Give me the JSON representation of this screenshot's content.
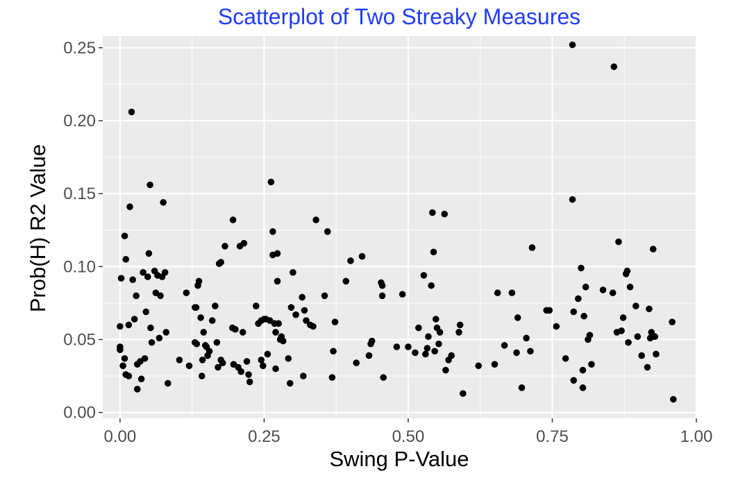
{
  "chart_data": {
    "type": "scatter",
    "title": "Scatterplot of Two Streaky Measures",
    "title_color": "#1f3cff",
    "xlabel": "Swing P-Value",
    "ylabel": "Prob(H) R2 Value",
    "xlim": [
      -0.03,
      1.0
    ],
    "ylim": [
      -0.004,
      0.258
    ],
    "x_ticks": [
      0.0,
      0.25,
      0.5,
      0.75,
      1.0
    ],
    "x_tick_labels": [
      "0.00",
      "0.25",
      "0.50",
      "0.75",
      "1.00"
    ],
    "y_ticks": [
      0.0,
      0.05,
      0.1,
      0.15,
      0.2,
      0.25
    ],
    "y_tick_labels": [
      "0.00",
      "0.05",
      "0.10",
      "0.15",
      "0.20",
      "0.25"
    ],
    "grid": true,
    "panel_color": "#ebebeb",
    "grid_color": "#ffffff",
    "point_color": "#000000",
    "points": [
      [
        0.0,
        0.059
      ],
      [
        0.0,
        0.045
      ],
      [
        0.0,
        0.043
      ],
      [
        0.002,
        0.092
      ],
      [
        0.005,
        0.032
      ],
      [
        0.008,
        0.121
      ],
      [
        0.008,
        0.037
      ],
      [
        0.01,
        0.105
      ],
      [
        0.01,
        0.026
      ],
      [
        0.015,
        0.06
      ],
      [
        0.015,
        0.025
      ],
      [
        0.017,
        0.141
      ],
      [
        0.02,
        0.206
      ],
      [
        0.022,
        0.091
      ],
      [
        0.025,
        0.064
      ],
      [
        0.028,
        0.08
      ],
      [
        0.03,
        0.033
      ],
      [
        0.03,
        0.016
      ],
      [
        0.035,
        0.035
      ],
      [
        0.037,
        0.023
      ],
      [
        0.04,
        0.096
      ],
      [
        0.043,
        0.037
      ],
      [
        0.045,
        0.069
      ],
      [
        0.048,
        0.093
      ],
      [
        0.05,
        0.109
      ],
      [
        0.052,
        0.156
      ],
      [
        0.053,
        0.058
      ],
      [
        0.055,
        0.048
      ],
      [
        0.06,
        0.097
      ],
      [
        0.062,
        0.082
      ],
      [
        0.065,
        0.094
      ],
      [
        0.068,
        0.051
      ],
      [
        0.07,
        0.08
      ],
      [
        0.073,
        0.093
      ],
      [
        0.075,
        0.144
      ],
      [
        0.078,
        0.096
      ],
      [
        0.08,
        0.055
      ],
      [
        0.083,
        0.02
      ],
      [
        0.103,
        0.036
      ],
      [
        0.115,
        0.082
      ],
      [
        0.12,
        0.032
      ],
      [
        0.13,
        0.072
      ],
      [
        0.13,
        0.048
      ],
      [
        0.132,
        0.072
      ],
      [
        0.133,
        0.047
      ],
      [
        0.135,
        0.087
      ],
      [
        0.137,
        0.09
      ],
      [
        0.14,
        0.065
      ],
      [
        0.142,
        0.025
      ],
      [
        0.143,
        0.036
      ],
      [
        0.145,
        0.055
      ],
      [
        0.148,
        0.046
      ],
      [
        0.15,
        0.045
      ],
      [
        0.152,
        0.039
      ],
      [
        0.155,
        0.042
      ],
      [
        0.16,
        0.063
      ],
      [
        0.165,
        0.073
      ],
      [
        0.168,
        0.048
      ],
      [
        0.17,
        0.031
      ],
      [
        0.172,
        0.102
      ],
      [
        0.175,
        0.103
      ],
      [
        0.175,
        0.036
      ],
      [
        0.178,
        0.034
      ],
      [
        0.182,
        0.114
      ],
      [
        0.195,
        0.058
      ],
      [
        0.196,
        0.132
      ],
      [
        0.197,
        0.033
      ],
      [
        0.2,
        0.057
      ],
      [
        0.205,
        0.031
      ],
      [
        0.208,
        0.114
      ],
      [
        0.21,
        0.028
      ],
      [
        0.213,
        0.055
      ],
      [
        0.215,
        0.116
      ],
      [
        0.22,
        0.035
      ],
      [
        0.223,
        0.026
      ],
      [
        0.225,
        0.021
      ],
      [
        0.236,
        0.073
      ],
      [
        0.24,
        0.061
      ],
      [
        0.245,
        0.036
      ],
      [
        0.245,
        0.063
      ],
      [
        0.248,
        0.032
      ],
      [
        0.25,
        0.064
      ],
      [
        0.253,
        0.064
      ],
      [
        0.256,
        0.04
      ],
      [
        0.26,
        0.063
      ],
      [
        0.262,
        0.158
      ],
      [
        0.265,
        0.124
      ],
      [
        0.265,
        0.108
      ],
      [
        0.268,
        0.061
      ],
      [
        0.27,
        0.055
      ],
      [
        0.27,
        0.03
      ],
      [
        0.273,
        0.109
      ],
      [
        0.273,
        0.09
      ],
      [
        0.275,
        0.061
      ],
      [
        0.278,
        0.05
      ],
      [
        0.28,
        0.052
      ],
      [
        0.283,
        0.049
      ],
      [
        0.292,
        0.037
      ],
      [
        0.295,
        0.02
      ],
      [
        0.297,
        0.072
      ],
      [
        0.3,
        0.096
      ],
      [
        0.305,
        0.067
      ],
      [
        0.316,
        0.079
      ],
      [
        0.318,
        0.025
      ],
      [
        0.32,
        0.07
      ],
      [
        0.323,
        0.063
      ],
      [
        0.33,
        0.06
      ],
      [
        0.335,
        0.059
      ],
      [
        0.34,
        0.132
      ],
      [
        0.355,
        0.08
      ],
      [
        0.36,
        0.124
      ],
      [
        0.368,
        0.024
      ],
      [
        0.37,
        0.042
      ],
      [
        0.373,
        0.062
      ],
      [
        0.392,
        0.09
      ],
      [
        0.4,
        0.104
      ],
      [
        0.41,
        0.034
      ],
      [
        0.42,
        0.107
      ],
      [
        0.432,
        0.039
      ],
      [
        0.435,
        0.047
      ],
      [
        0.437,
        0.049
      ],
      [
        0.453,
        0.089
      ],
      [
        0.455,
        0.087
      ],
      [
        0.455,
        0.08
      ],
      [
        0.457,
        0.024
      ],
      [
        0.48,
        0.045
      ],
      [
        0.49,
        0.081
      ],
      [
        0.5,
        0.045
      ],
      [
        0.512,
        0.041
      ],
      [
        0.518,
        0.058
      ],
      [
        0.527,
        0.094
      ],
      [
        0.53,
        0.04
      ],
      [
        0.533,
        0.044
      ],
      [
        0.535,
        0.052
      ],
      [
        0.54,
        0.087
      ],
      [
        0.542,
        0.137
      ],
      [
        0.544,
        0.11
      ],
      [
        0.546,
        0.042
      ],
      [
        0.548,
        0.064
      ],
      [
        0.55,
        0.058
      ],
      [
        0.553,
        0.047
      ],
      [
        0.555,
        0.055
      ],
      [
        0.563,
        0.136
      ],
      [
        0.565,
        0.029
      ],
      [
        0.57,
        0.036
      ],
      [
        0.575,
        0.039
      ],
      [
        0.588,
        0.055
      ],
      [
        0.59,
        0.06
      ],
      [
        0.595,
        0.013
      ],
      [
        0.622,
        0.032
      ],
      [
        0.65,
        0.033
      ],
      [
        0.655,
        0.082
      ],
      [
        0.667,
        0.046
      ],
      [
        0.68,
        0.082
      ],
      [
        0.688,
        0.041
      ],
      [
        0.69,
        0.065
      ],
      [
        0.697,
        0.017
      ],
      [
        0.705,
        0.051
      ],
      [
        0.712,
        0.042
      ],
      [
        0.715,
        0.113
      ],
      [
        0.74,
        0.07
      ],
      [
        0.745,
        0.07
      ],
      [
        0.757,
        0.059
      ],
      [
        0.773,
        0.037
      ],
      [
        0.785,
        0.252
      ],
      [
        0.785,
        0.146
      ],
      [
        0.787,
        0.069
      ],
      [
        0.787,
        0.022
      ],
      [
        0.795,
        0.078
      ],
      [
        0.8,
        0.099
      ],
      [
        0.803,
        0.029
      ],
      [
        0.803,
        0.017
      ],
      [
        0.805,
        0.066
      ],
      [
        0.808,
        0.086
      ],
      [
        0.812,
        0.05
      ],
      [
        0.815,
        0.053
      ],
      [
        0.818,
        0.033
      ],
      [
        0.838,
        0.084
      ],
      [
        0.855,
        0.082
      ],
      [
        0.857,
        0.237
      ],
      [
        0.862,
        0.055
      ],
      [
        0.865,
        0.117
      ],
      [
        0.87,
        0.056
      ],
      [
        0.873,
        0.065
      ],
      [
        0.878,
        0.095
      ],
      [
        0.88,
        0.097
      ],
      [
        0.882,
        0.048
      ],
      [
        0.885,
        0.086
      ],
      [
        0.895,
        0.073
      ],
      [
        0.898,
        0.052
      ],
      [
        0.905,
        0.039
      ],
      [
        0.915,
        0.031
      ],
      [
        0.918,
        0.071
      ],
      [
        0.92,
        0.051
      ],
      [
        0.922,
        0.055
      ],
      [
        0.925,
        0.112
      ],
      [
        0.928,
        0.052
      ],
      [
        0.93,
        0.04
      ],
      [
        0.958,
        0.062
      ],
      [
        0.96,
        0.009
      ]
    ]
  }
}
